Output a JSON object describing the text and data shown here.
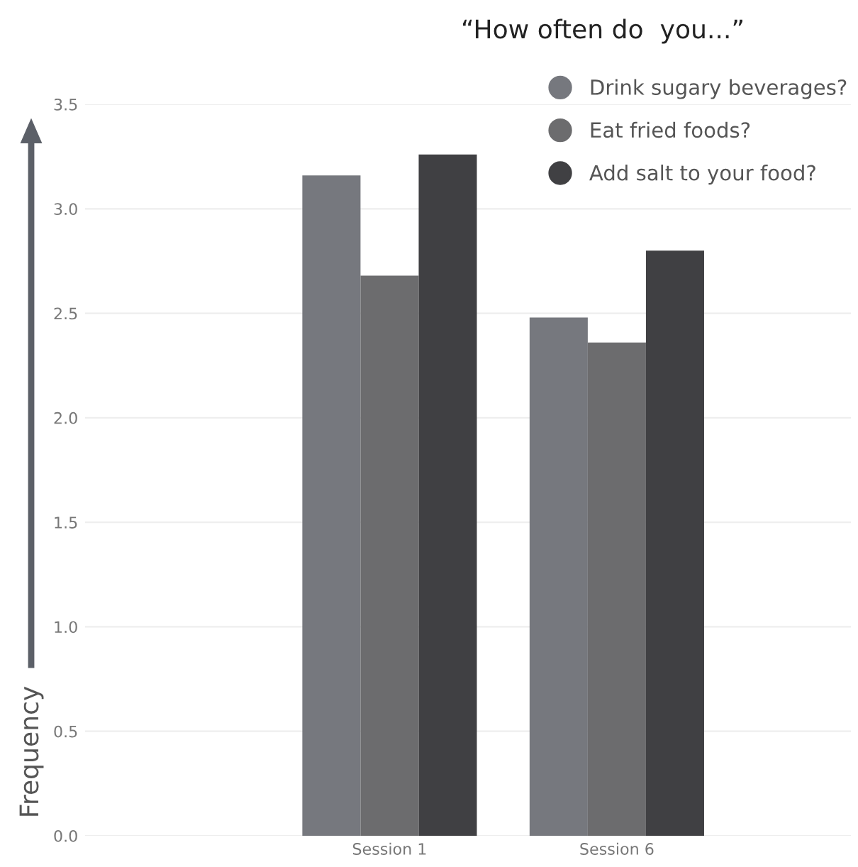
{
  "chart_data": {
    "type": "bar",
    "title": "“How often do  you...”",
    "ylabel": "Frequency",
    "categories": [
      "Session 1",
      "Session 6"
    ],
    "series": [
      {
        "name": "Drink sugary beverages?",
        "color": "#76787e",
        "values": [
          3.16,
          2.48
        ]
      },
      {
        "name": "Eat fried foods?",
        "color": "#6c6c6e",
        "values": [
          2.68,
          2.36
        ]
      },
      {
        "name": "Add salt to your food?",
        "color": "#404043",
        "values": [
          3.26,
          2.8
        ]
      }
    ],
    "ylim": [
      0,
      3.5
    ],
    "yticks": [
      {
        "value": 0,
        "label": "0.0"
      },
      {
        "value": 0.5,
        "label": "0.5"
      },
      {
        "value": 1,
        "label": "1.0"
      },
      {
        "value": 1.5,
        "label": "1.5"
      },
      {
        "value": 2,
        "label": "2.0"
      },
      {
        "value": 2.5,
        "label": "2.5"
      },
      {
        "value": 3,
        "label": "3.0"
      },
      {
        "value": 3.5,
        "label": "3.5"
      }
    ],
    "grid": "y",
    "legend": "top right"
  }
}
